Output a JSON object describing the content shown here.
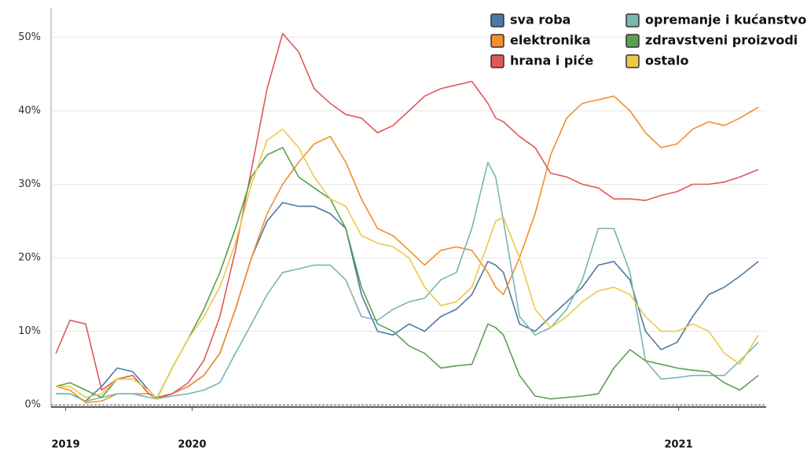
{
  "chart_data": {
    "type": "line",
    "x": [
      2019.72,
      2019.749,
      2019.781,
      2019.814,
      2019.846,
      2019.878,
      2019.911,
      2019.927,
      2019.959,
      2019.992,
      2020.024,
      2020.057,
      2020.089,
      2020.122,
      2020.154,
      2020.186,
      2020.219,
      2020.251,
      2020.284,
      2020.316,
      2020.348,
      2020.381,
      2020.413,
      2020.446,
      2020.478,
      2020.511,
      2020.543,
      2020.575,
      2020.608,
      2020.624,
      2020.64,
      2020.673,
      2020.705,
      2020.737,
      2020.77,
      2020.802,
      2020.835,
      2020.867,
      2020.9,
      2020.932,
      2020.964,
      2020.997,
      2021.029,
      2021.062,
      2021.094,
      2021.126,
      2021.164
    ],
    "series": [
      {
        "name": "sva roba",
        "color": "#4e79a7",
        "values": [
          1.5,
          1.5,
          0.5,
          2.5,
          5,
          4.5,
          2,
          0.8,
          1.5,
          2.5,
          4,
          7,
          13,
          20,
          25,
          27.5,
          27,
          27,
          26,
          24,
          15,
          10,
          9.5,
          11,
          10,
          12,
          13,
          15,
          19.5,
          19,
          18,
          11,
          10,
          12,
          14,
          16,
          19,
          19.5,
          17,
          10,
          7.5,
          8.5,
          12,
          15,
          16,
          17.5,
          19.5
        ]
      },
      {
        "name": "elektronika",
        "color": "#f28e2b",
        "values": [
          2.5,
          2,
          0.3,
          0.5,
          1.5,
          1.5,
          1.5,
          0.8,
          1.5,
          2.5,
          4,
          7,
          13,
          20,
          26,
          30,
          33,
          35.5,
          36.5,
          33,
          28,
          24,
          23,
          21,
          19,
          21,
          21.5,
          21,
          18,
          16,
          15,
          20,
          26,
          34,
          39,
          41,
          41.5,
          42,
          40,
          37,
          35,
          35.5,
          37.5,
          38.5,
          38,
          39,
          40.5
        ]
      },
      {
        "name": "hrana i piće",
        "color": "#e15759",
        "values": [
          7,
          11.5,
          11,
          2,
          3.5,
          4,
          1.5,
          1,
          1.5,
          3,
          6,
          12,
          21,
          32,
          43,
          50.5,
          48,
          43,
          41,
          39.5,
          39,
          37,
          38,
          40,
          42,
          43,
          43.5,
          44,
          41,
          39,
          38.5,
          36.5,
          35,
          31.5,
          31,
          30,
          29.5,
          28,
          28,
          27.8,
          28.5,
          29,
          30,
          30,
          30.3,
          31,
          32
        ]
      },
      {
        "name": "opremanje i kućanstvo",
        "color": "#76b7b2",
        "values": [
          1.5,
          1.5,
          0.5,
          1,
          1.5,
          1.5,
          1,
          0.8,
          1.2,
          1.5,
          2,
          3,
          7,
          11,
          15,
          18,
          18.5,
          19,
          19,
          17,
          12,
          11.5,
          13,
          14,
          14.5,
          17,
          18,
          24,
          33,
          31,
          25,
          12,
          9.5,
          10.5,
          13,
          17,
          24,
          24,
          18,
          6,
          3.5,
          3.7,
          4,
          4,
          4,
          6,
          8.5
        ]
      },
      {
        "name": "zdravstveni proizvodi",
        "color": "#59a14f",
        "values": [
          2.5,
          3,
          2,
          1,
          3.5,
          3.5,
          2,
          0.8,
          5,
          9,
          13,
          18,
          24,
          31,
          34,
          35,
          31,
          29.5,
          28,
          24,
          16,
          11,
          10,
          8,
          7,
          5,
          5.3,
          5.5,
          11,
          10.5,
          9.5,
          4,
          1.2,
          0.8,
          1,
          1.2,
          1.5,
          5,
          7.5,
          6,
          5.5,
          5,
          4.7,
          4.5,
          3,
          2,
          4
        ]
      },
      {
        "name": "ostalo",
        "color": "#edc948",
        "values": [
          2.5,
          2.5,
          1,
          1.5,
          3.5,
          3.5,
          2,
          0.7,
          5,
          9,
          12,
          16,
          22,
          30,
          36,
          37.5,
          35,
          31,
          28,
          27,
          23,
          22,
          21.5,
          20,
          16,
          13.5,
          14,
          16,
          22,
          25,
          25.5,
          20,
          13,
          10.5,
          12,
          14,
          15.5,
          16,
          15,
          12,
          10,
          10,
          11,
          10,
          7,
          5.5,
          9.5
        ]
      }
    ],
    "xlim": [
      2019.71,
      2021.18
    ],
    "xticks": [
      {
        "value": 2019.74,
        "label": "2019"
      },
      2020,
      2021
    ],
    "ylim": [
      -0.3,
      54
    ],
    "yticks": [
      {
        "value": 0,
        "label": "0%"
      },
      {
        "value": 10,
        "label": "10%"
      },
      {
        "value": 20,
        "label": "20%"
      },
      {
        "value": 30,
        "label": "30%"
      },
      {
        "value": 40,
        "label": "40%"
      },
      {
        "value": 50,
        "label": "50%"
      }
    ],
    "grid": true,
    "legend": "upper right"
  }
}
